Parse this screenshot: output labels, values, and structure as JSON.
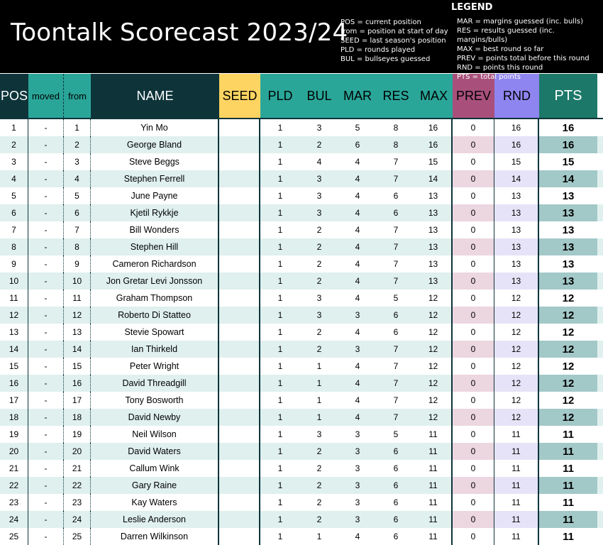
{
  "title": "Toontalk Scorecast 2023/24",
  "legend": {
    "heading": "LEGEND",
    "left": [
      "POS = current position",
      "from = position at start of day",
      "SEED = last season's position",
      "PLD = rounds played",
      "BUL = bullseyes guessed"
    ],
    "right": [
      "MAR = margins guessed (inc. bulls)",
      "RES = results guessed (inc. margins/bulls)",
      "MAX = best round so far",
      "PREV = points total before this round",
      "RND = points this round",
      "PTS = total points"
    ]
  },
  "columns": {
    "pos": "POS",
    "moved": "moved",
    "from": "from",
    "name": "NAME",
    "seed": "SEED",
    "pld": "PLD",
    "bul": "BUL",
    "mar": "MAR",
    "res": "RES",
    "max": "MAX",
    "prev": "PREV",
    "rnd": "RND",
    "pts": "PTS"
  },
  "colors": {
    "header_bg": "#000000",
    "dark": "#0e343a",
    "teal": "#2aa699",
    "seed": "#fdd461",
    "prev": "#a8507b",
    "rnd": "#8f85f0",
    "pts": "#1c7868",
    "row_alt": "#dff0ee"
  },
  "rows": [
    {
      "pos": "1",
      "moved": "-",
      "from": "1",
      "name": "Yin Mo",
      "seed": "",
      "pld": "1",
      "bul": "3",
      "mar": "5",
      "res": "8",
      "max": "16",
      "prev": "0",
      "rnd": "16",
      "pts": "16"
    },
    {
      "pos": "2",
      "moved": "-",
      "from": "2",
      "name": "George Bland",
      "seed": "",
      "pld": "1",
      "bul": "2",
      "mar": "6",
      "res": "8",
      "max": "16",
      "prev": "0",
      "rnd": "16",
      "pts": "16"
    },
    {
      "pos": "3",
      "moved": "-",
      "from": "3",
      "name": "Steve Beggs",
      "seed": "",
      "pld": "1",
      "bul": "4",
      "mar": "4",
      "res": "7",
      "max": "15",
      "prev": "0",
      "rnd": "15",
      "pts": "15"
    },
    {
      "pos": "4",
      "moved": "-",
      "from": "4",
      "name": "Stephen Ferrell",
      "seed": "",
      "pld": "1",
      "bul": "3",
      "mar": "4",
      "res": "7",
      "max": "14",
      "prev": "0",
      "rnd": "14",
      "pts": "14"
    },
    {
      "pos": "5",
      "moved": "-",
      "from": "5",
      "name": "June Payne",
      "seed": "",
      "pld": "1",
      "bul": "3",
      "mar": "4",
      "res": "6",
      "max": "13",
      "prev": "0",
      "rnd": "13",
      "pts": "13"
    },
    {
      "pos": "6",
      "moved": "-",
      "from": "6",
      "name": "Kjetil Rykkje",
      "seed": "",
      "pld": "1",
      "bul": "3",
      "mar": "4",
      "res": "6",
      "max": "13",
      "prev": "0",
      "rnd": "13",
      "pts": "13"
    },
    {
      "pos": "7",
      "moved": "-",
      "from": "7",
      "name": "Bill Wonders",
      "seed": "",
      "pld": "1",
      "bul": "2",
      "mar": "4",
      "res": "7",
      "max": "13",
      "prev": "0",
      "rnd": "13",
      "pts": "13"
    },
    {
      "pos": "8",
      "moved": "-",
      "from": "8",
      "name": "Stephen Hill",
      "seed": "",
      "pld": "1",
      "bul": "2",
      "mar": "4",
      "res": "7",
      "max": "13",
      "prev": "0",
      "rnd": "13",
      "pts": "13"
    },
    {
      "pos": "9",
      "moved": "-",
      "from": "9",
      "name": "Cameron Richardson",
      "seed": "",
      "pld": "1",
      "bul": "2",
      "mar": "4",
      "res": "7",
      "max": "13",
      "prev": "0",
      "rnd": "13",
      "pts": "13"
    },
    {
      "pos": "10",
      "moved": "-",
      "from": "10",
      "name": "Jon Gretar Levi Jonsson",
      "seed": "",
      "pld": "1",
      "bul": "2",
      "mar": "4",
      "res": "7",
      "max": "13",
      "prev": "0",
      "rnd": "13",
      "pts": "13"
    },
    {
      "pos": "11",
      "moved": "-",
      "from": "11",
      "name": "Graham Thompson",
      "seed": "",
      "pld": "1",
      "bul": "3",
      "mar": "4",
      "res": "5",
      "max": "12",
      "prev": "0",
      "rnd": "12",
      "pts": "12"
    },
    {
      "pos": "12",
      "moved": "-",
      "from": "12",
      "name": "Roberto Di Statteo",
      "seed": "",
      "pld": "1",
      "bul": "3",
      "mar": "3",
      "res": "6",
      "max": "12",
      "prev": "0",
      "rnd": "12",
      "pts": "12"
    },
    {
      "pos": "13",
      "moved": "-",
      "from": "13",
      "name": "Stevie Spowart",
      "seed": "",
      "pld": "1",
      "bul": "2",
      "mar": "4",
      "res": "6",
      "max": "12",
      "prev": "0",
      "rnd": "12",
      "pts": "12"
    },
    {
      "pos": "14",
      "moved": "-",
      "from": "14",
      "name": "Ian Thirkeld",
      "seed": "",
      "pld": "1",
      "bul": "2",
      "mar": "3",
      "res": "7",
      "max": "12",
      "prev": "0",
      "rnd": "12",
      "pts": "12"
    },
    {
      "pos": "15",
      "moved": "-",
      "from": "15",
      "name": "Peter Wright",
      "seed": "",
      "pld": "1",
      "bul": "1",
      "mar": "4",
      "res": "7",
      "max": "12",
      "prev": "0",
      "rnd": "12",
      "pts": "12"
    },
    {
      "pos": "16",
      "moved": "-",
      "from": "16",
      "name": "David Threadgill",
      "seed": "",
      "pld": "1",
      "bul": "1",
      "mar": "4",
      "res": "7",
      "max": "12",
      "prev": "0",
      "rnd": "12",
      "pts": "12"
    },
    {
      "pos": "17",
      "moved": "-",
      "from": "17",
      "name": "Tony Bosworth",
      "seed": "",
      "pld": "1",
      "bul": "1",
      "mar": "4",
      "res": "7",
      "max": "12",
      "prev": "0",
      "rnd": "12",
      "pts": "12"
    },
    {
      "pos": "18",
      "moved": "-",
      "from": "18",
      "name": "David Newby",
      "seed": "",
      "pld": "1",
      "bul": "1",
      "mar": "4",
      "res": "7",
      "max": "12",
      "prev": "0",
      "rnd": "12",
      "pts": "12"
    },
    {
      "pos": "19",
      "moved": "-",
      "from": "19",
      "name": "Neil Wilson",
      "seed": "",
      "pld": "1",
      "bul": "3",
      "mar": "3",
      "res": "5",
      "max": "11",
      "prev": "0",
      "rnd": "11",
      "pts": "11"
    },
    {
      "pos": "20",
      "moved": "-",
      "from": "20",
      "name": "David Waters",
      "seed": "",
      "pld": "1",
      "bul": "2",
      "mar": "3",
      "res": "6",
      "max": "11",
      "prev": "0",
      "rnd": "11",
      "pts": "11"
    },
    {
      "pos": "21",
      "moved": "-",
      "from": "21",
      "name": "Callum Wink",
      "seed": "",
      "pld": "1",
      "bul": "2",
      "mar": "3",
      "res": "6",
      "max": "11",
      "prev": "0",
      "rnd": "11",
      "pts": "11"
    },
    {
      "pos": "22",
      "moved": "-",
      "from": "22",
      "name": "Gary Raine",
      "seed": "",
      "pld": "1",
      "bul": "2",
      "mar": "3",
      "res": "6",
      "max": "11",
      "prev": "0",
      "rnd": "11",
      "pts": "11"
    },
    {
      "pos": "23",
      "moved": "-",
      "from": "23",
      "name": "Kay Waters",
      "seed": "",
      "pld": "1",
      "bul": "2",
      "mar": "3",
      "res": "6",
      "max": "11",
      "prev": "0",
      "rnd": "11",
      "pts": "11"
    },
    {
      "pos": "24",
      "moved": "-",
      "from": "24",
      "name": "Leslie Anderson",
      "seed": "",
      "pld": "1",
      "bul": "2",
      "mar": "3",
      "res": "6",
      "max": "11",
      "prev": "0",
      "rnd": "11",
      "pts": "11"
    },
    {
      "pos": "25",
      "moved": "-",
      "from": "25",
      "name": "Darren Wilkinson",
      "seed": "",
      "pld": "1",
      "bul": "1",
      "mar": "4",
      "res": "6",
      "max": "11",
      "prev": "0",
      "rnd": "11",
      "pts": "11"
    }
  ]
}
